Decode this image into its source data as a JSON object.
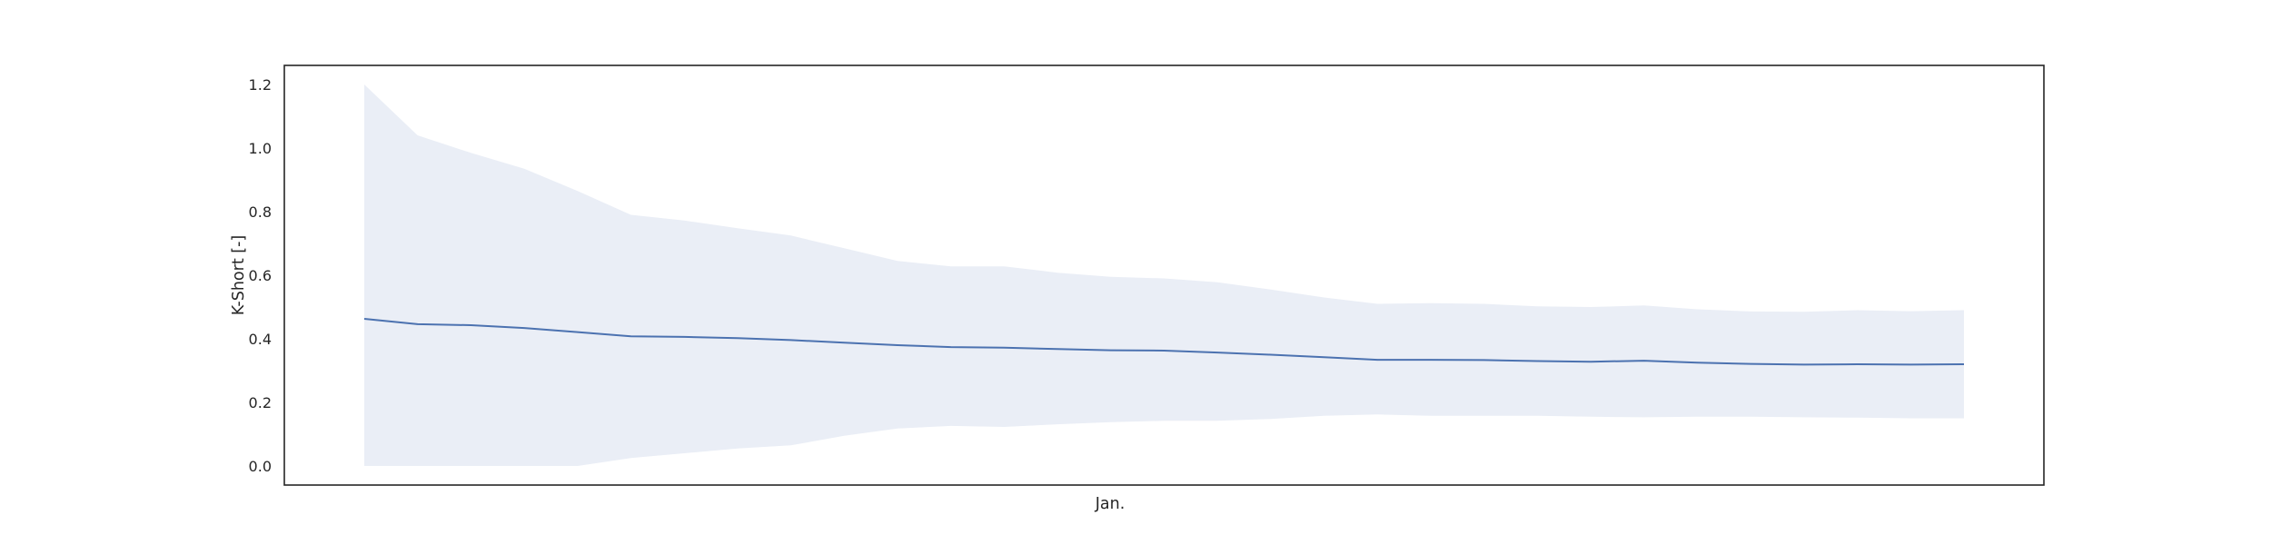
{
  "chart_data": {
    "type": "line",
    "title": "",
    "xlabel": "Jan.",
    "ylabel": "K-Short [-]",
    "ylim": [
      -0.06,
      1.26
    ],
    "yticks": [
      0.0,
      0.2,
      0.4,
      0.6,
      0.8,
      1.0,
      1.2
    ],
    "ytick_labels": [
      "0.0",
      "0.2",
      "0.4",
      "0.6",
      "0.8",
      "1.0",
      "1.2"
    ],
    "grid": false,
    "colors": {
      "line": "#4c72b0",
      "band": "#eaeef6",
      "frame": "#262626"
    },
    "x": [
      0,
      1,
      2,
      3,
      4,
      5,
      6,
      7,
      8,
      9,
      10,
      11,
      12,
      13,
      14,
      15,
      16,
      17,
      18,
      19,
      20,
      21,
      22,
      23,
      24,
      25,
      26,
      27,
      28,
      29,
      30
    ],
    "series": [
      {
        "values": [
          0.463,
          0.446,
          0.443,
          0.434,
          0.421,
          0.408,
          0.406,
          0.402,
          0.396,
          0.388,
          0.38,
          0.374,
          0.372,
          0.368,
          0.364,
          0.363,
          0.357,
          0.35,
          0.342,
          0.334,
          0.334,
          0.333,
          0.33,
          0.328,
          0.331,
          0.325,
          0.321,
          0.319,
          0.32,
          0.319,
          0.32
        ]
      }
    ],
    "band": {
      "upper": [
        1.2,
        1.04,
        0.985,
        0.935,
        0.865,
        0.79,
        0.772,
        0.748,
        0.725,
        0.685,
        0.645,
        0.628,
        0.628,
        0.608,
        0.595,
        0.59,
        0.578,
        0.555,
        0.53,
        0.51,
        0.512,
        0.51,
        0.502,
        0.5,
        0.505,
        0.493,
        0.486,
        0.485,
        0.49,
        0.487,
        0.49
      ],
      "lower": [
        0.0,
        0.0,
        0.0,
        0.0,
        0.0,
        0.025,
        0.04,
        0.055,
        0.065,
        0.095,
        0.118,
        0.126,
        0.123,
        0.131,
        0.138,
        0.142,
        0.142,
        0.148,
        0.158,
        0.162,
        0.158,
        0.158,
        0.158,
        0.155,
        0.153,
        0.155,
        0.155,
        0.153,
        0.152,
        0.15,
        0.15
      ]
    }
  }
}
